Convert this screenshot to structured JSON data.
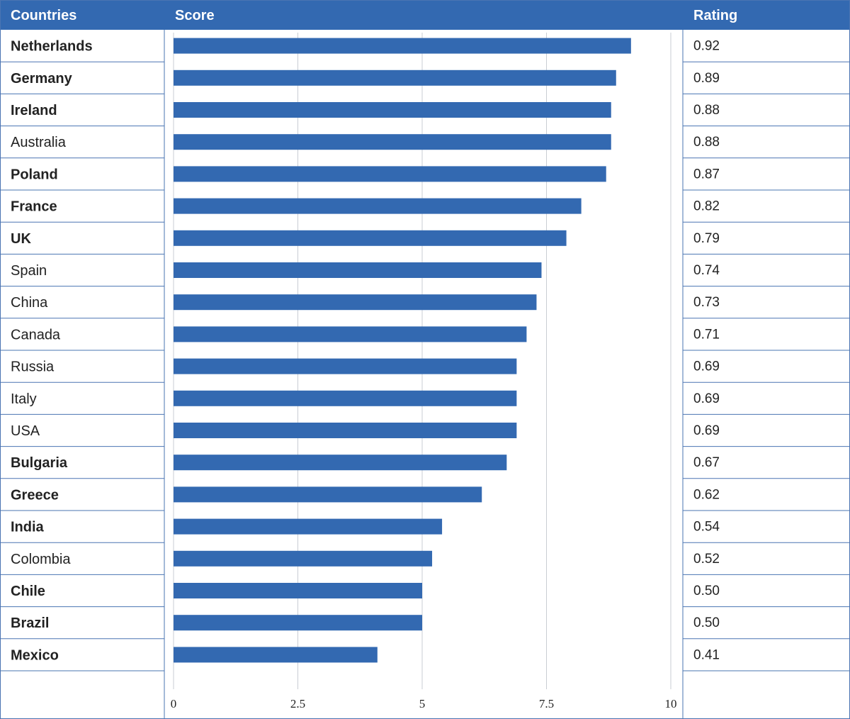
{
  "header": {
    "countries_label": "Countries",
    "score_label": "Score",
    "rating_label": "Rating"
  },
  "colors": {
    "header_bg": "#3369B1",
    "header_text": "#ffffff",
    "bar": "#3369B1",
    "border": "#4A74B2",
    "grid": "#C9CDD3",
    "text": "#222222"
  },
  "chart_data": {
    "type": "table",
    "columns": [
      "Countries",
      "Score",
      "Rating"
    ],
    "categories": [
      "Netherlands",
      "Germany",
      "Ireland",
      "Australia",
      "Poland",
      "France",
      "UK",
      "Spain",
      "China",
      "Canada",
      "Russia",
      "Italy",
      "USA",
      "Bulgaria",
      "Greece",
      "India",
      "Colombia",
      "Chile",
      "Brazil",
      "Mexico"
    ],
    "bold_categories": [
      "Netherlands",
      "Germany",
      "Ireland",
      "Poland",
      "France",
      "UK",
      "Bulgaria",
      "Greece",
      "India",
      "Chile",
      "Brazil",
      "Mexico"
    ],
    "values": [
      9.2,
      8.9,
      8.8,
      8.8,
      8.7,
      8.2,
      7.9,
      7.4,
      7.3,
      7.1,
      6.9,
      6.9,
      6.9,
      6.7,
      6.2,
      5.4,
      5.2,
      5.0,
      5.0,
      4.1
    ],
    "ratings": [
      "0.92",
      "0.89",
      "0.88",
      "0.88",
      "0.87",
      "0.82",
      "0.79",
      "0.74",
      "0.73",
      "0.71",
      "0.69",
      "0.69",
      "0.69",
      "0.67",
      "0.62",
      "0.54",
      "0.52",
      "0.50",
      "0.50",
      "0.41"
    ],
    "xlim": [
      0,
      10
    ],
    "x_ticks": [
      "0",
      "2.5",
      "5",
      "7.5",
      "10"
    ],
    "grid": true
  }
}
